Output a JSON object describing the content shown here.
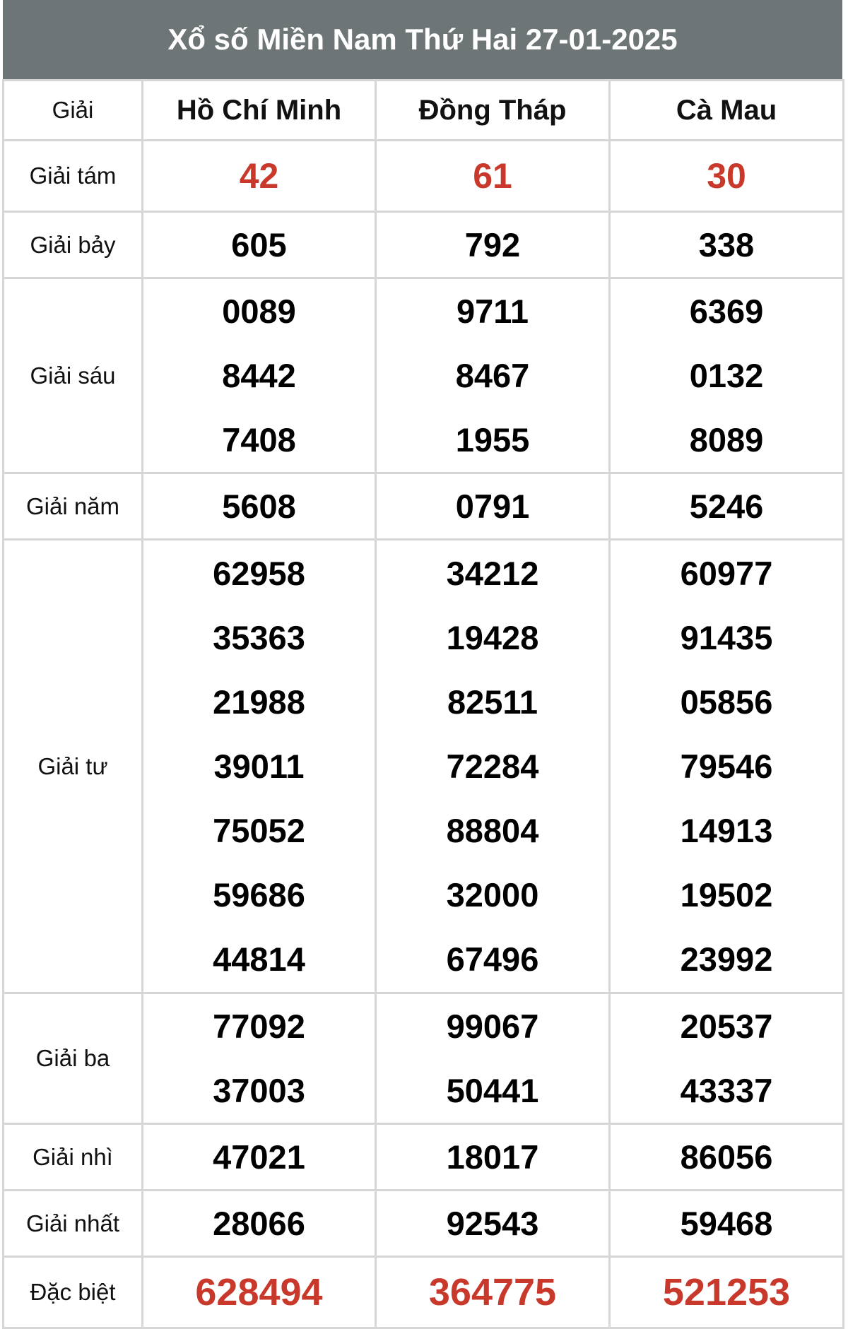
{
  "title": "Xổ số Miền Nam Thứ Hai 27-01-2025",
  "header": {
    "label": "Giải",
    "cities": [
      "Hồ Chí Minh",
      "Đồng Tháp",
      "Cà Mau"
    ]
  },
  "colors": {
    "header_bg": "#6e7577",
    "highlight": "#c8392b"
  },
  "rows": [
    {
      "label": "Giải tám",
      "values": [
        [
          "42"
        ],
        [
          "61"
        ],
        [
          "30"
        ]
      ]
    },
    {
      "label": "Giải bảy",
      "values": [
        [
          "605"
        ],
        [
          "792"
        ],
        [
          "338"
        ]
      ]
    },
    {
      "label": "Giải sáu",
      "values": [
        [
          "0089",
          "8442",
          "7408"
        ],
        [
          "9711",
          "8467",
          "1955"
        ],
        [
          "6369",
          "0132",
          "8089"
        ]
      ]
    },
    {
      "label": "Giải năm",
      "values": [
        [
          "5608"
        ],
        [
          "0791"
        ],
        [
          "5246"
        ]
      ]
    },
    {
      "label": "Giải tư",
      "values": [
        [
          "62958",
          "35363",
          "21988",
          "39011",
          "75052",
          "59686",
          "44814"
        ],
        [
          "34212",
          "19428",
          "82511",
          "72284",
          "88804",
          "32000",
          "67496"
        ],
        [
          "60977",
          "91435",
          "05856",
          "79546",
          "14913",
          "19502",
          "23992"
        ]
      ]
    },
    {
      "label": "Giải ba",
      "values": [
        [
          "77092",
          "37003"
        ],
        [
          "99067",
          "50441"
        ],
        [
          "20537",
          "43337"
        ]
      ]
    },
    {
      "label": "Giải nhì",
      "values": [
        [
          "47021"
        ],
        [
          "18017"
        ],
        [
          "86056"
        ]
      ]
    },
    {
      "label": "Giải nhất",
      "values": [
        [
          "28066"
        ],
        [
          "92543"
        ],
        [
          "59468"
        ]
      ]
    },
    {
      "label": "Đặc biệt",
      "values": [
        [
          "628494"
        ],
        [
          "364775"
        ],
        [
          "521253"
        ]
      ]
    }
  ]
}
